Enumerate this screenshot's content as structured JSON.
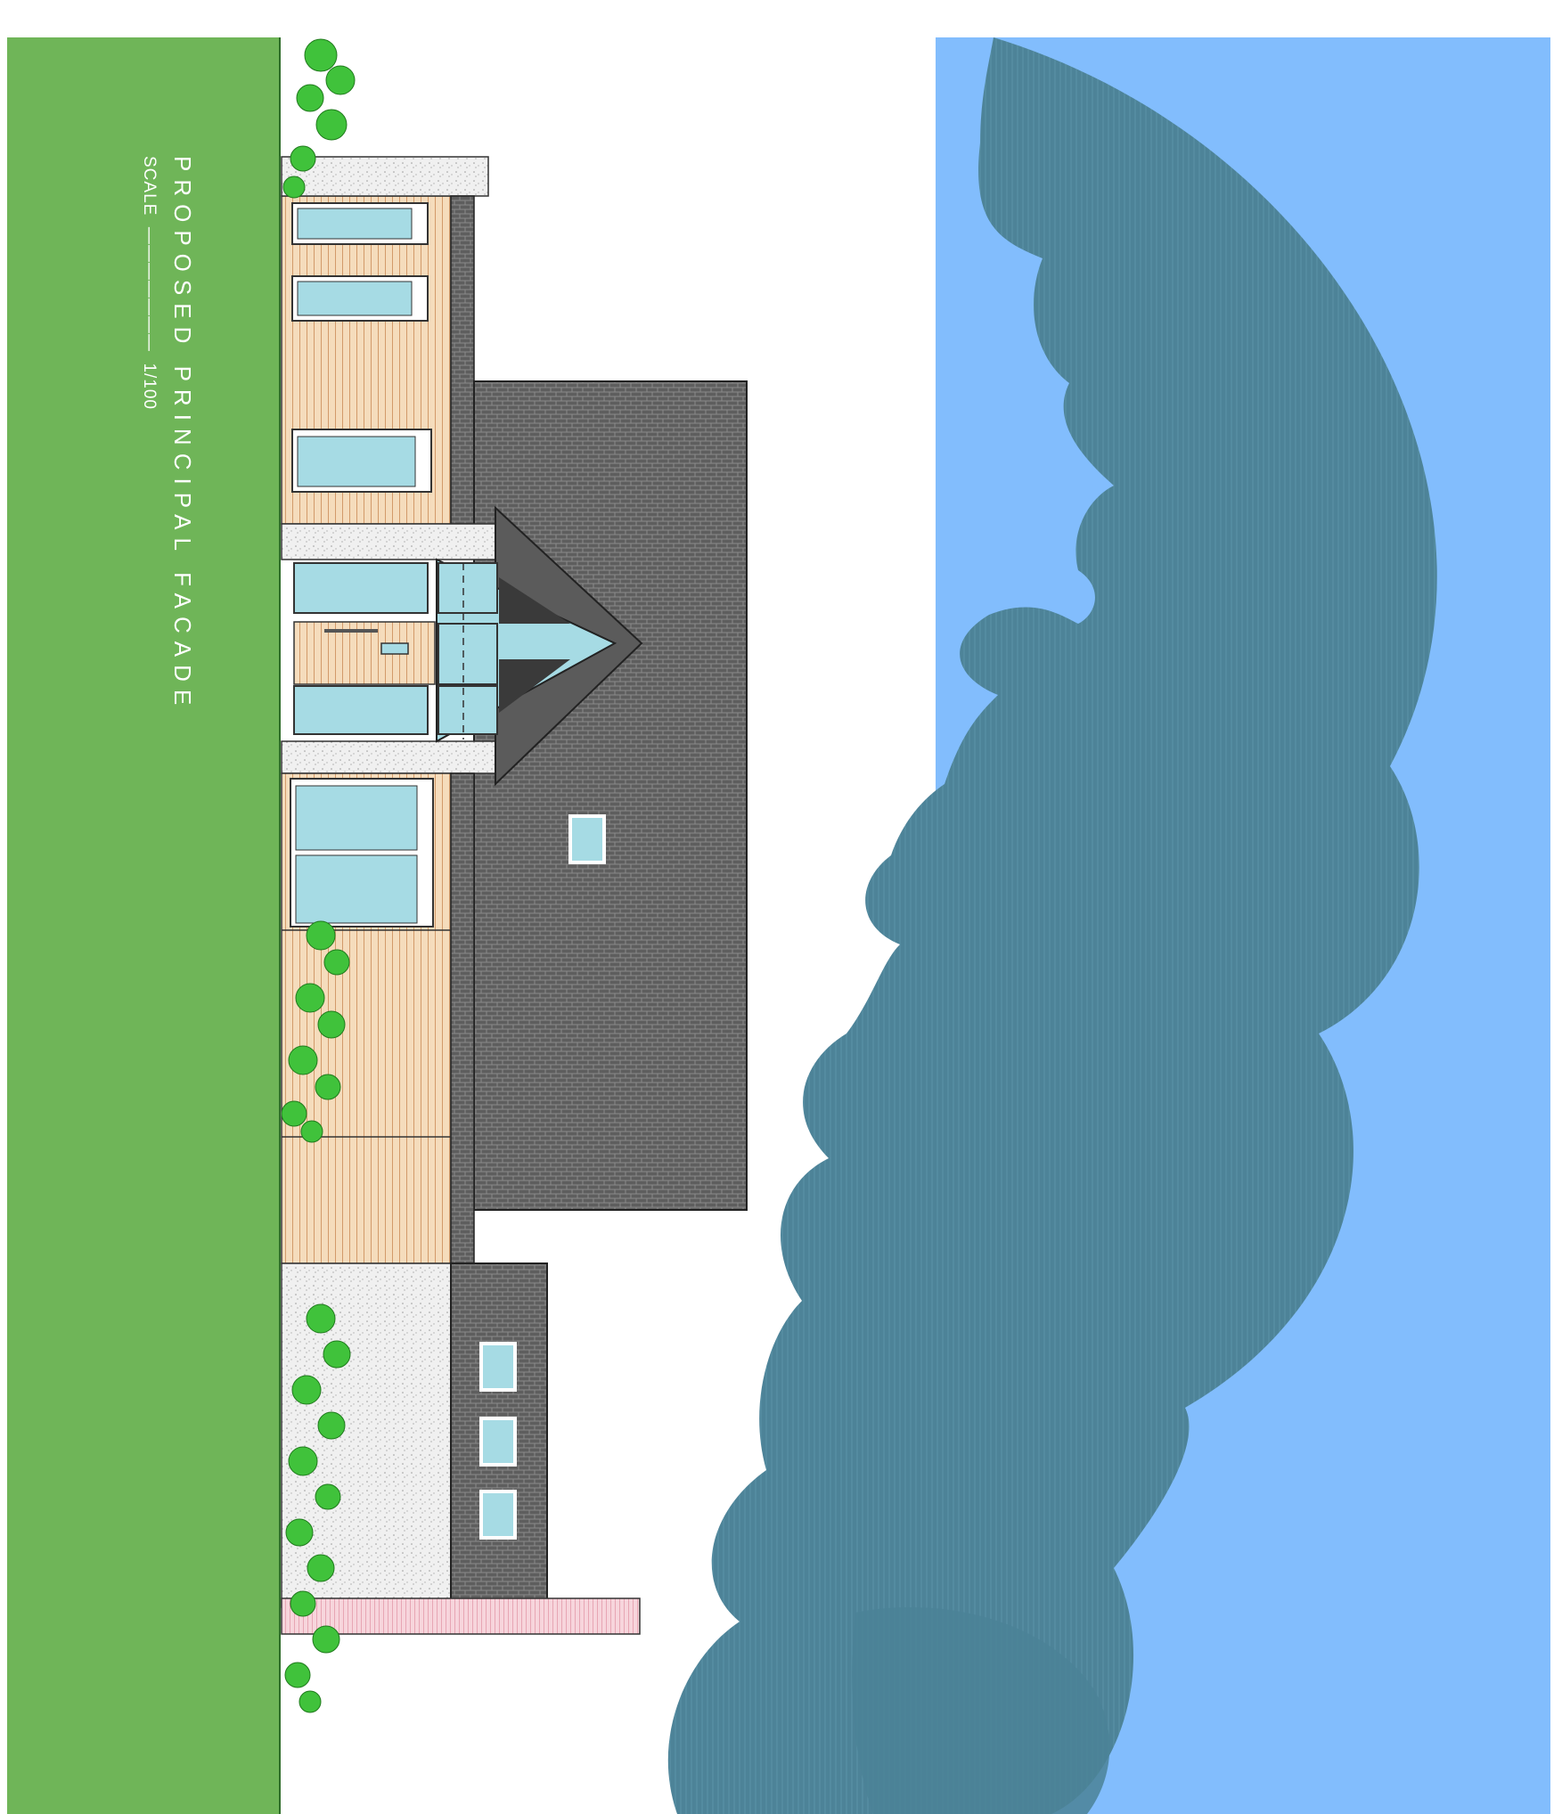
{
  "drawing": {
    "title": "PROPOSED PRINCIPAL FACADE",
    "scale_label": "SCALE",
    "scale_value": "1/100"
  },
  "colors": {
    "ground": "#6fb558",
    "sky": "#82bdfd",
    "tree_canopy": "#4e8499",
    "cladding_timber": "#f3d7b3",
    "cladding_lines": "#c98a55",
    "glazing": "#a6dbe4",
    "roof_tiles": "#6f6f6f",
    "render": "#ececec",
    "plinth": "#f2c0cc",
    "shrub": "#3fc63a"
  },
  "icons": [
    "shrub-icon",
    "cloud-edge"
  ]
}
